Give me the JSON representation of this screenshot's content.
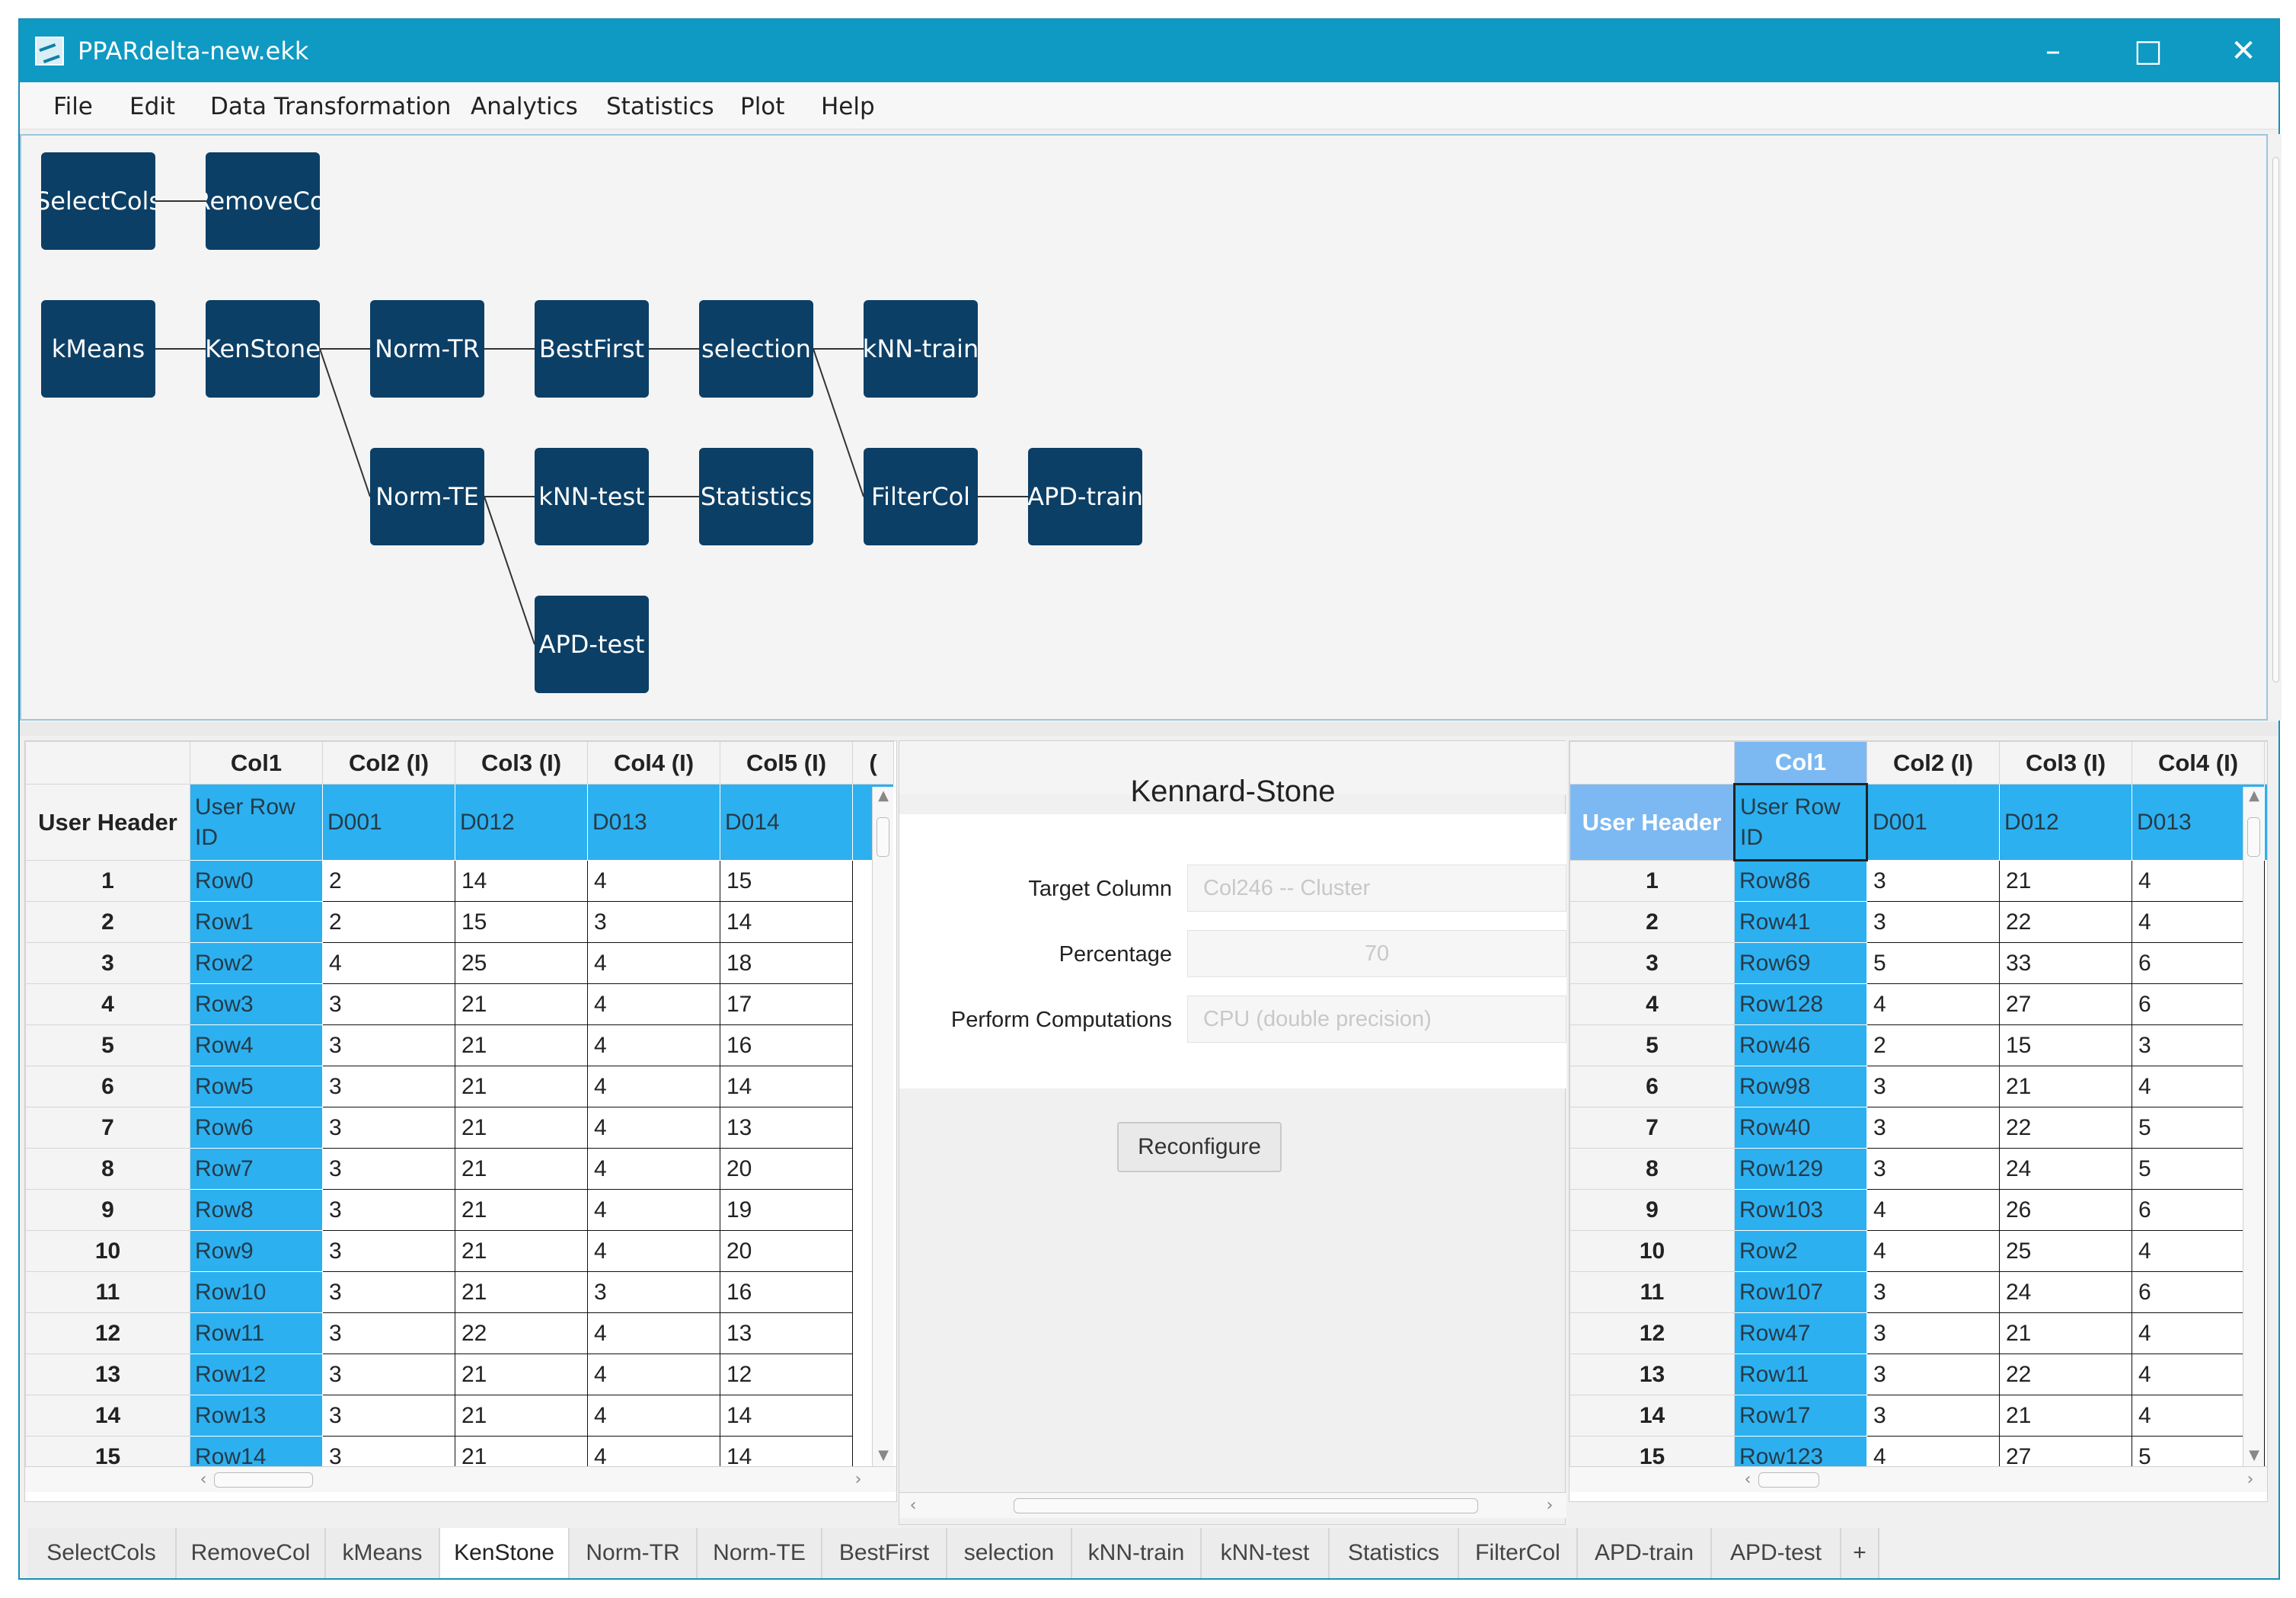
{
  "window": {
    "title": "PPARdelta-new.ekk"
  },
  "menu": [
    "File",
    "Edit",
    "Data Transformation",
    "Analytics",
    "Statistics",
    "Plot",
    "Help"
  ],
  "workflow": {
    "nodes": [
      "SelectCols",
      "RemoveCol",
      "kMeans",
      "KenStone",
      "Norm-TR",
      "BestFirst",
      "selection",
      "kNN-train",
      "Norm-TE",
      "kNN-test",
      "Statistics",
      "FilterCol",
      "APD-train",
      "APD-test"
    ]
  },
  "left_table": {
    "columns": [
      "Col1",
      "Col2 (I)",
      "Col3 (I)",
      "Col4 (I)",
      "Col5 (I)",
      "("
    ],
    "user_header_label": "User Header",
    "headers": [
      "User Row ID",
      "D001",
      "D012",
      "D013",
      "D014"
    ],
    "rows": [
      [
        "1",
        "Row0",
        "2",
        "14",
        "4",
        "15"
      ],
      [
        "2",
        "Row1",
        "2",
        "15",
        "3",
        "14"
      ],
      [
        "3",
        "Row2",
        "4",
        "25",
        "4",
        "18"
      ],
      [
        "4",
        "Row3",
        "3",
        "21",
        "4",
        "17"
      ],
      [
        "5",
        "Row4",
        "3",
        "21",
        "4",
        "16"
      ],
      [
        "6",
        "Row5",
        "3",
        "21",
        "4",
        "14"
      ],
      [
        "7",
        "Row6",
        "3",
        "21",
        "4",
        "13"
      ],
      [
        "8",
        "Row7",
        "3",
        "21",
        "4",
        "20"
      ],
      [
        "9",
        "Row8",
        "3",
        "21",
        "4",
        "19"
      ],
      [
        "10",
        "Row9",
        "3",
        "21",
        "4",
        "20"
      ],
      [
        "11",
        "Row10",
        "3",
        "21",
        "3",
        "16"
      ],
      [
        "12",
        "Row11",
        "3",
        "22",
        "4",
        "13"
      ],
      [
        "13",
        "Row12",
        "3",
        "21",
        "4",
        "12"
      ],
      [
        "14",
        "Row13",
        "3",
        "21",
        "4",
        "14"
      ],
      [
        "15",
        "Row14",
        "3",
        "21",
        "4",
        "14"
      ]
    ]
  },
  "config": {
    "title": "Kennard-Stone",
    "target_label": "Target Column",
    "target_value": "Col246 -- Cluster",
    "percentage_label": "Percentage",
    "percentage_value": "70",
    "compute_label": "Perform Computations",
    "compute_value": "CPU (double precision)",
    "reconfigure_label": "Reconfigure"
  },
  "right_table": {
    "columns": [
      "Col1",
      "Col2 (I)",
      "Col3 (I)",
      "Col4 (I)",
      "("
    ],
    "user_header_label": "User Header",
    "headers": [
      "User Row ID",
      "D001",
      "D012",
      "D013"
    ],
    "rows": [
      [
        "1",
        "Row86",
        "3",
        "21",
        "4"
      ],
      [
        "2",
        "Row41",
        "3",
        "22",
        "4"
      ],
      [
        "3",
        "Row69",
        "5",
        "33",
        "6"
      ],
      [
        "4",
        "Row128",
        "4",
        "27",
        "6"
      ],
      [
        "5",
        "Row46",
        "2",
        "15",
        "3"
      ],
      [
        "6",
        "Row98",
        "3",
        "21",
        "4"
      ],
      [
        "7",
        "Row40",
        "3",
        "22",
        "5"
      ],
      [
        "8",
        "Row129",
        "3",
        "24",
        "5"
      ],
      [
        "9",
        "Row103",
        "4",
        "26",
        "6"
      ],
      [
        "10",
        "Row2",
        "4",
        "25",
        "4"
      ],
      [
        "11",
        "Row107",
        "3",
        "24",
        "6"
      ],
      [
        "12",
        "Row47",
        "3",
        "21",
        "4"
      ],
      [
        "13",
        "Row11",
        "3",
        "22",
        "4"
      ],
      [
        "14",
        "Row17",
        "3",
        "21",
        "4"
      ],
      [
        "15",
        "Row123",
        "4",
        "27",
        "5"
      ]
    ]
  },
  "tabs": [
    "SelectCols",
    "RemoveCol",
    "kMeans",
    "KenStone",
    "Norm-TR",
    "Norm-TE",
    "BestFirst",
    "selection",
    "kNN-train",
    "kNN-test",
    "Statistics",
    "FilterCol",
    "APD-train",
    "APD-test",
    "+"
  ],
  "active_tab": "KenStone",
  "colors": {
    "titlebar": "#0e9ac3",
    "node": "#0c3f66",
    "id_column": "#2db0ef",
    "selected_header": "#7cb9f2"
  }
}
